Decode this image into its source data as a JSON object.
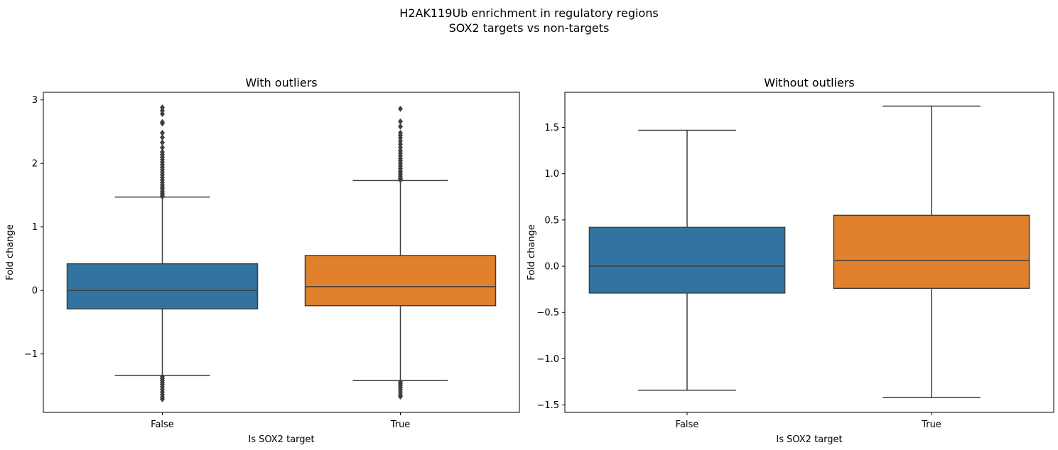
{
  "figure": {
    "title_line1": "H2AK119Ub enrichment in regulatory regions",
    "title_line2": "SOX2 targets vs non-targets"
  },
  "colors": {
    "false_box": "#3274a1",
    "true_box": "#e1812c",
    "line": "#3f3f3f"
  },
  "chart_data": [
    {
      "type": "box",
      "title": "With outliers",
      "xlabel": "Is SOX2 target",
      "ylabel": "Fold change",
      "categories": [
        "False",
        "True"
      ],
      "ylim": [
        -1.92,
        3.12
      ],
      "yticks": [
        -1,
        0,
        1,
        2,
        3
      ],
      "ytick_labels": [
        "−1",
        "0",
        "1",
        "2",
        "3"
      ],
      "boxes": [
        {
          "category": "False",
          "q1": -0.29,
          "median": 0.0,
          "q3": 0.42,
          "whisker_low": -1.34,
          "whisker_high": 1.47,
          "outliers_high": [
            1.48,
            1.5,
            1.53,
            1.56,
            1.6,
            1.63,
            1.66,
            1.7,
            1.74,
            1.78,
            1.82,
            1.86,
            1.9,
            1.94,
            1.98,
            2.02,
            2.06,
            2.1,
            2.14,
            2.18,
            2.25,
            2.33,
            2.41,
            2.48,
            2.63,
            2.65,
            2.78,
            2.83,
            2.88
          ],
          "outliers_low": [
            -1.36,
            -1.39,
            -1.42,
            -1.45,
            -1.48,
            -1.52,
            -1.56,
            -1.6,
            -1.64,
            -1.68,
            -1.71
          ]
        },
        {
          "category": "True",
          "q1": -0.24,
          "median": 0.06,
          "q3": 0.55,
          "whisker_low": -1.42,
          "whisker_high": 1.73,
          "outliers_high": [
            1.74,
            1.76,
            1.79,
            1.82,
            1.85,
            1.88,
            1.92,
            1.96,
            2.0,
            2.04,
            2.08,
            2.12,
            2.16,
            2.2,
            2.25,
            2.3,
            2.35,
            2.4,
            2.44,
            2.48,
            2.58,
            2.66,
            2.86
          ],
          "outliers_low": [
            -1.44,
            -1.47,
            -1.5,
            -1.53,
            -1.56,
            -1.6,
            -1.64,
            -1.67
          ]
        }
      ]
    },
    {
      "type": "box",
      "title": "Without outliers",
      "xlabel": "Is SOX2 target",
      "ylabel": "Fold change",
      "categories": [
        "False",
        "True"
      ],
      "ylim": [
        -1.58,
        1.88
      ],
      "yticks": [
        -1.5,
        -1.0,
        -0.5,
        0.0,
        0.5,
        1.0,
        1.5
      ],
      "ytick_labels": [
        "−1.5",
        "−1.0",
        "−0.5",
        "0.0",
        "0.5",
        "1.0",
        "1.5"
      ],
      "boxes": [
        {
          "category": "False",
          "q1": -0.29,
          "median": 0.0,
          "q3": 0.42,
          "whisker_low": -1.34,
          "whisker_high": 1.47
        },
        {
          "category": "True",
          "q1": -0.24,
          "median": 0.06,
          "q3": 0.55,
          "whisker_low": -1.42,
          "whisker_high": 1.73
        }
      ]
    }
  ]
}
